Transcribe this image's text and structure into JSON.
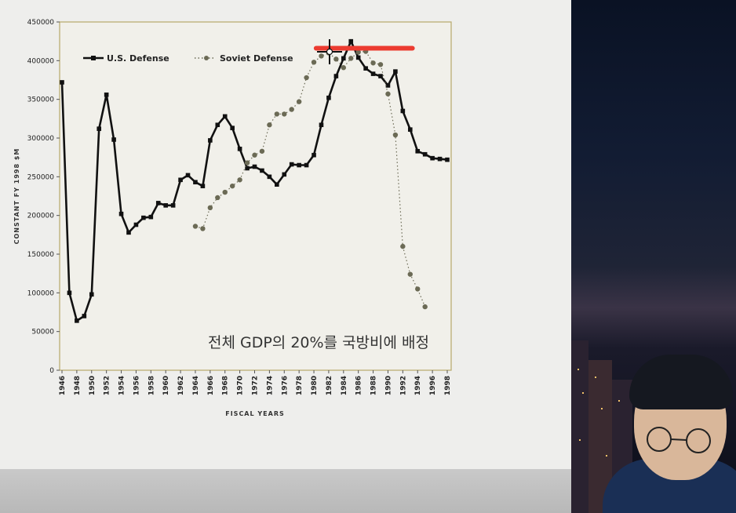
{
  "chart_data": {
    "type": "line",
    "title": "",
    "xlabel": "FISCAL YEARS",
    "ylabel": "CONSTANT FY 1998 $M",
    "ylim": [
      0,
      450000
    ],
    "xlim": [
      1946,
      1998
    ],
    "y_ticks": [
      "0",
      "50000",
      "100000",
      "150000",
      "200000",
      "250000",
      "300000",
      "350000",
      "400000",
      "450000"
    ],
    "x_ticks": [
      "1946",
      "1948",
      "1950",
      "1952",
      "1954",
      "1956",
      "1958",
      "1960",
      "1962",
      "1964",
      "1966",
      "1968",
      "1970",
      "1972",
      "1974",
      "1976",
      "1978",
      "1980",
      "1982",
      "1984",
      "1986",
      "1988",
      "1990",
      "1992",
      "1994",
      "1996",
      "1998"
    ],
    "legend_position": "top-left",
    "grid": false,
    "series": [
      {
        "name": "U.S. Defense",
        "style": "solid",
        "color": "#111111",
        "x": [
          1946,
          1947,
          1948,
          1949,
          1950,
          1951,
          1952,
          1953,
          1954,
          1955,
          1956,
          1957,
          1958,
          1959,
          1960,
          1961,
          1962,
          1963,
          1964,
          1965,
          1966,
          1967,
          1968,
          1969,
          1970,
          1971,
          1972,
          1973,
          1974,
          1975,
          1976,
          1977,
          1978,
          1979,
          1980,
          1981,
          1982,
          1983,
          1984,
          1985,
          1986,
          1987,
          1988,
          1989,
          1990,
          1991,
          1992,
          1993,
          1994,
          1995,
          1996,
          1997,
          1998
        ],
        "values": [
          372000,
          100000,
          64000,
          70000,
          98000,
          312000,
          356000,
          298000,
          202000,
          178000,
          188000,
          197000,
          198000,
          216000,
          213000,
          213000,
          246000,
          252000,
          243000,
          238000,
          297000,
          317000,
          328000,
          313000,
          286000,
          261000,
          263000,
          258000,
          250000,
          240000,
          253000,
          266000,
          265000,
          265000,
          278000,
          317000,
          352000,
          380000,
          403000,
          425000,
          404000,
          390000,
          383000,
          380000,
          368000,
          386000,
          335000,
          311000,
          283000,
          279000,
          274000,
          273000,
          272000
        ]
      },
      {
        "name": "Soviet Defense",
        "style": "dotted",
        "color": "#6b6a55",
        "x": [
          1964,
          1965,
          1966,
          1967,
          1968,
          1969,
          1970,
          1971,
          1972,
          1973,
          1974,
          1975,
          1976,
          1977,
          1978,
          1979,
          1980,
          1981,
          1982,
          1983,
          1984,
          1985,
          1986,
          1987,
          1988,
          1989,
          1990,
          1991,
          1992,
          1993,
          1994,
          1995
        ],
        "values": [
          186000,
          183000,
          210000,
          223000,
          230000,
          238000,
          246000,
          268000,
          278000,
          283000,
          317000,
          331000,
          331000,
          337000,
          347000,
          378000,
          398000,
          406000,
          410000,
          402000,
          391000,
          403000,
          411000,
          412000,
          397000,
          395000,
          357000,
          304000,
          160000,
          124000,
          105000,
          82000
        ]
      }
    ],
    "annotations": [
      {
        "text": "전체 GDP의 20%를 국방비에 배정"
      }
    ],
    "highlight_line": {
      "color": "#ec3b30",
      "y_value": 416000,
      "x_range": [
        1980.3,
        1993.3
      ]
    }
  },
  "colors": {
    "slide_bg": "#eeeeec",
    "plot_border": "#b7a86a",
    "highlight": "#ec3b30"
  },
  "overlay": {
    "cursor_icon": "crosshair-cursor-icon",
    "webcam": "presenter-webcam"
  }
}
